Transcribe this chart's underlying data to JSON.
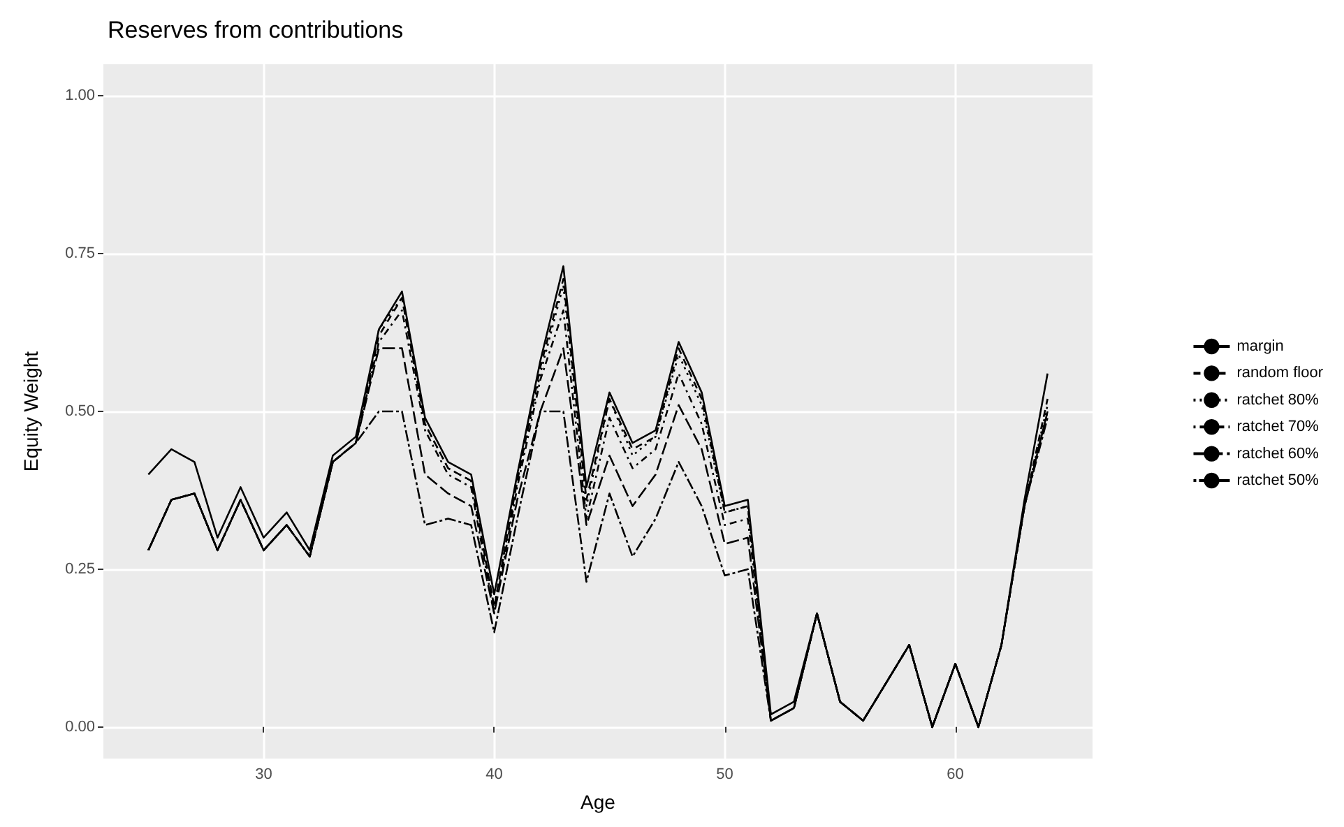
{
  "chart_data": {
    "type": "line",
    "title": "Reserves from contributions",
    "xlabel": "Age",
    "ylabel": "Equity Weight",
    "x": [
      25,
      26,
      27,
      28,
      29,
      30,
      31,
      32,
      33,
      34,
      35,
      36,
      37,
      38,
      39,
      40,
      41,
      42,
      43,
      44,
      45,
      46,
      47,
      48,
      49,
      50,
      51,
      52,
      53,
      54,
      55,
      56,
      57,
      58,
      59,
      60,
      61,
      62,
      63,
      64
    ],
    "xlim": [
      23.05,
      65.95
    ],
    "xticks": [
      30,
      40,
      50,
      60
    ],
    "ylim": [
      -0.05,
      1.05
    ],
    "yticks": [
      {
        "value": 0,
        "label": "0.00"
      },
      {
        "value": 0.25,
        "label": "0.25"
      },
      {
        "value": 0.5,
        "label": "0.50"
      },
      {
        "value": 0.75,
        "label": "0.75"
      },
      {
        "value": 1,
        "label": "1.00"
      }
    ],
    "grid": true,
    "legend": "right",
    "marker": "none",
    "series": [
      {
        "name": "margin",
        "color": "#000000",
        "line_style": "solid",
        "values": [
          0.4,
          0.44,
          0.42,
          0.3,
          0.38,
          0.3,
          0.34,
          0.28,
          0.43,
          0.46,
          0.63,
          0.69,
          0.49,
          0.42,
          0.4,
          0.21,
          0.4,
          0.58,
          0.73,
          0.38,
          0.53,
          0.45,
          0.47,
          0.61,
          0.53,
          0.35,
          0.36,
          0.02,
          0.04,
          0.18,
          0.04,
          0.01,
          0.07,
          0.13,
          0.0,
          0.1,
          0.0,
          0.13,
          0.36,
          0.56
        ]
      },
      {
        "name": "random floor",
        "color": "#000000",
        "line_style": "dashed",
        "values": [
          0.28,
          0.36,
          0.37,
          0.28,
          0.36,
          0.28,
          0.32,
          0.27,
          0.42,
          0.45,
          0.62,
          0.68,
          0.48,
          0.41,
          0.39,
          0.19,
          0.39,
          0.57,
          0.71,
          0.36,
          0.52,
          0.44,
          0.46,
          0.6,
          0.52,
          0.34,
          0.35,
          0.01,
          0.03,
          0.18,
          0.04,
          0.01,
          0.07,
          0.13,
          0.0,
          0.1,
          0.0,
          0.13,
          0.35,
          0.52
        ]
      },
      {
        "name": "ratchet 80%",
        "color": "#000000",
        "line_style": "dotted",
        "values": [
          0.28,
          0.36,
          0.37,
          0.28,
          0.36,
          0.28,
          0.32,
          0.27,
          0.42,
          0.45,
          0.63,
          0.68,
          0.48,
          0.41,
          0.39,
          0.19,
          0.39,
          0.56,
          0.7,
          0.35,
          0.52,
          0.43,
          0.46,
          0.59,
          0.51,
          0.34,
          0.35,
          0.01,
          0.03,
          0.18,
          0.04,
          0.01,
          0.07,
          0.13,
          0.0,
          0.1,
          0.0,
          0.13,
          0.35,
          0.51
        ]
      },
      {
        "name": "ratchet 70%",
        "color": "#000000",
        "line_style": "dashdot",
        "values": [
          0.28,
          0.36,
          0.37,
          0.28,
          0.36,
          0.28,
          0.32,
          0.27,
          0.42,
          0.45,
          0.61,
          0.66,
          0.47,
          0.4,
          0.38,
          0.18,
          0.38,
          0.55,
          0.66,
          0.33,
          0.49,
          0.41,
          0.44,
          0.56,
          0.48,
          0.32,
          0.33,
          0.01,
          0.03,
          0.18,
          0.04,
          0.01,
          0.07,
          0.13,
          0.0,
          0.1,
          0.0,
          0.13,
          0.35,
          0.5
        ]
      },
      {
        "name": "ratchet 60%",
        "color": "#000000",
        "line_style": "longdash",
        "values": [
          0.28,
          0.36,
          0.37,
          0.28,
          0.36,
          0.28,
          0.32,
          0.27,
          0.42,
          0.45,
          0.6,
          0.6,
          0.4,
          0.37,
          0.35,
          0.18,
          0.36,
          0.5,
          0.6,
          0.32,
          0.43,
          0.35,
          0.4,
          0.51,
          0.44,
          0.29,
          0.3,
          0.01,
          0.03,
          0.18,
          0.04,
          0.01,
          0.07,
          0.13,
          0.0,
          0.1,
          0.0,
          0.13,
          0.35,
          0.5
        ]
      },
      {
        "name": "ratchet 50%",
        "color": "#000000",
        "line_style": "twodash",
        "values": [
          0.28,
          0.36,
          0.37,
          0.28,
          0.36,
          0.28,
          0.32,
          0.27,
          0.42,
          0.45,
          0.5,
          0.5,
          0.32,
          0.33,
          0.32,
          0.15,
          0.33,
          0.5,
          0.5,
          0.23,
          0.37,
          0.27,
          0.33,
          0.42,
          0.35,
          0.24,
          0.25,
          0.01,
          0.03,
          0.18,
          0.04,
          0.01,
          0.07,
          0.13,
          0.0,
          0.1,
          0.0,
          0.13,
          0.35,
          0.49
        ]
      }
    ]
  }
}
